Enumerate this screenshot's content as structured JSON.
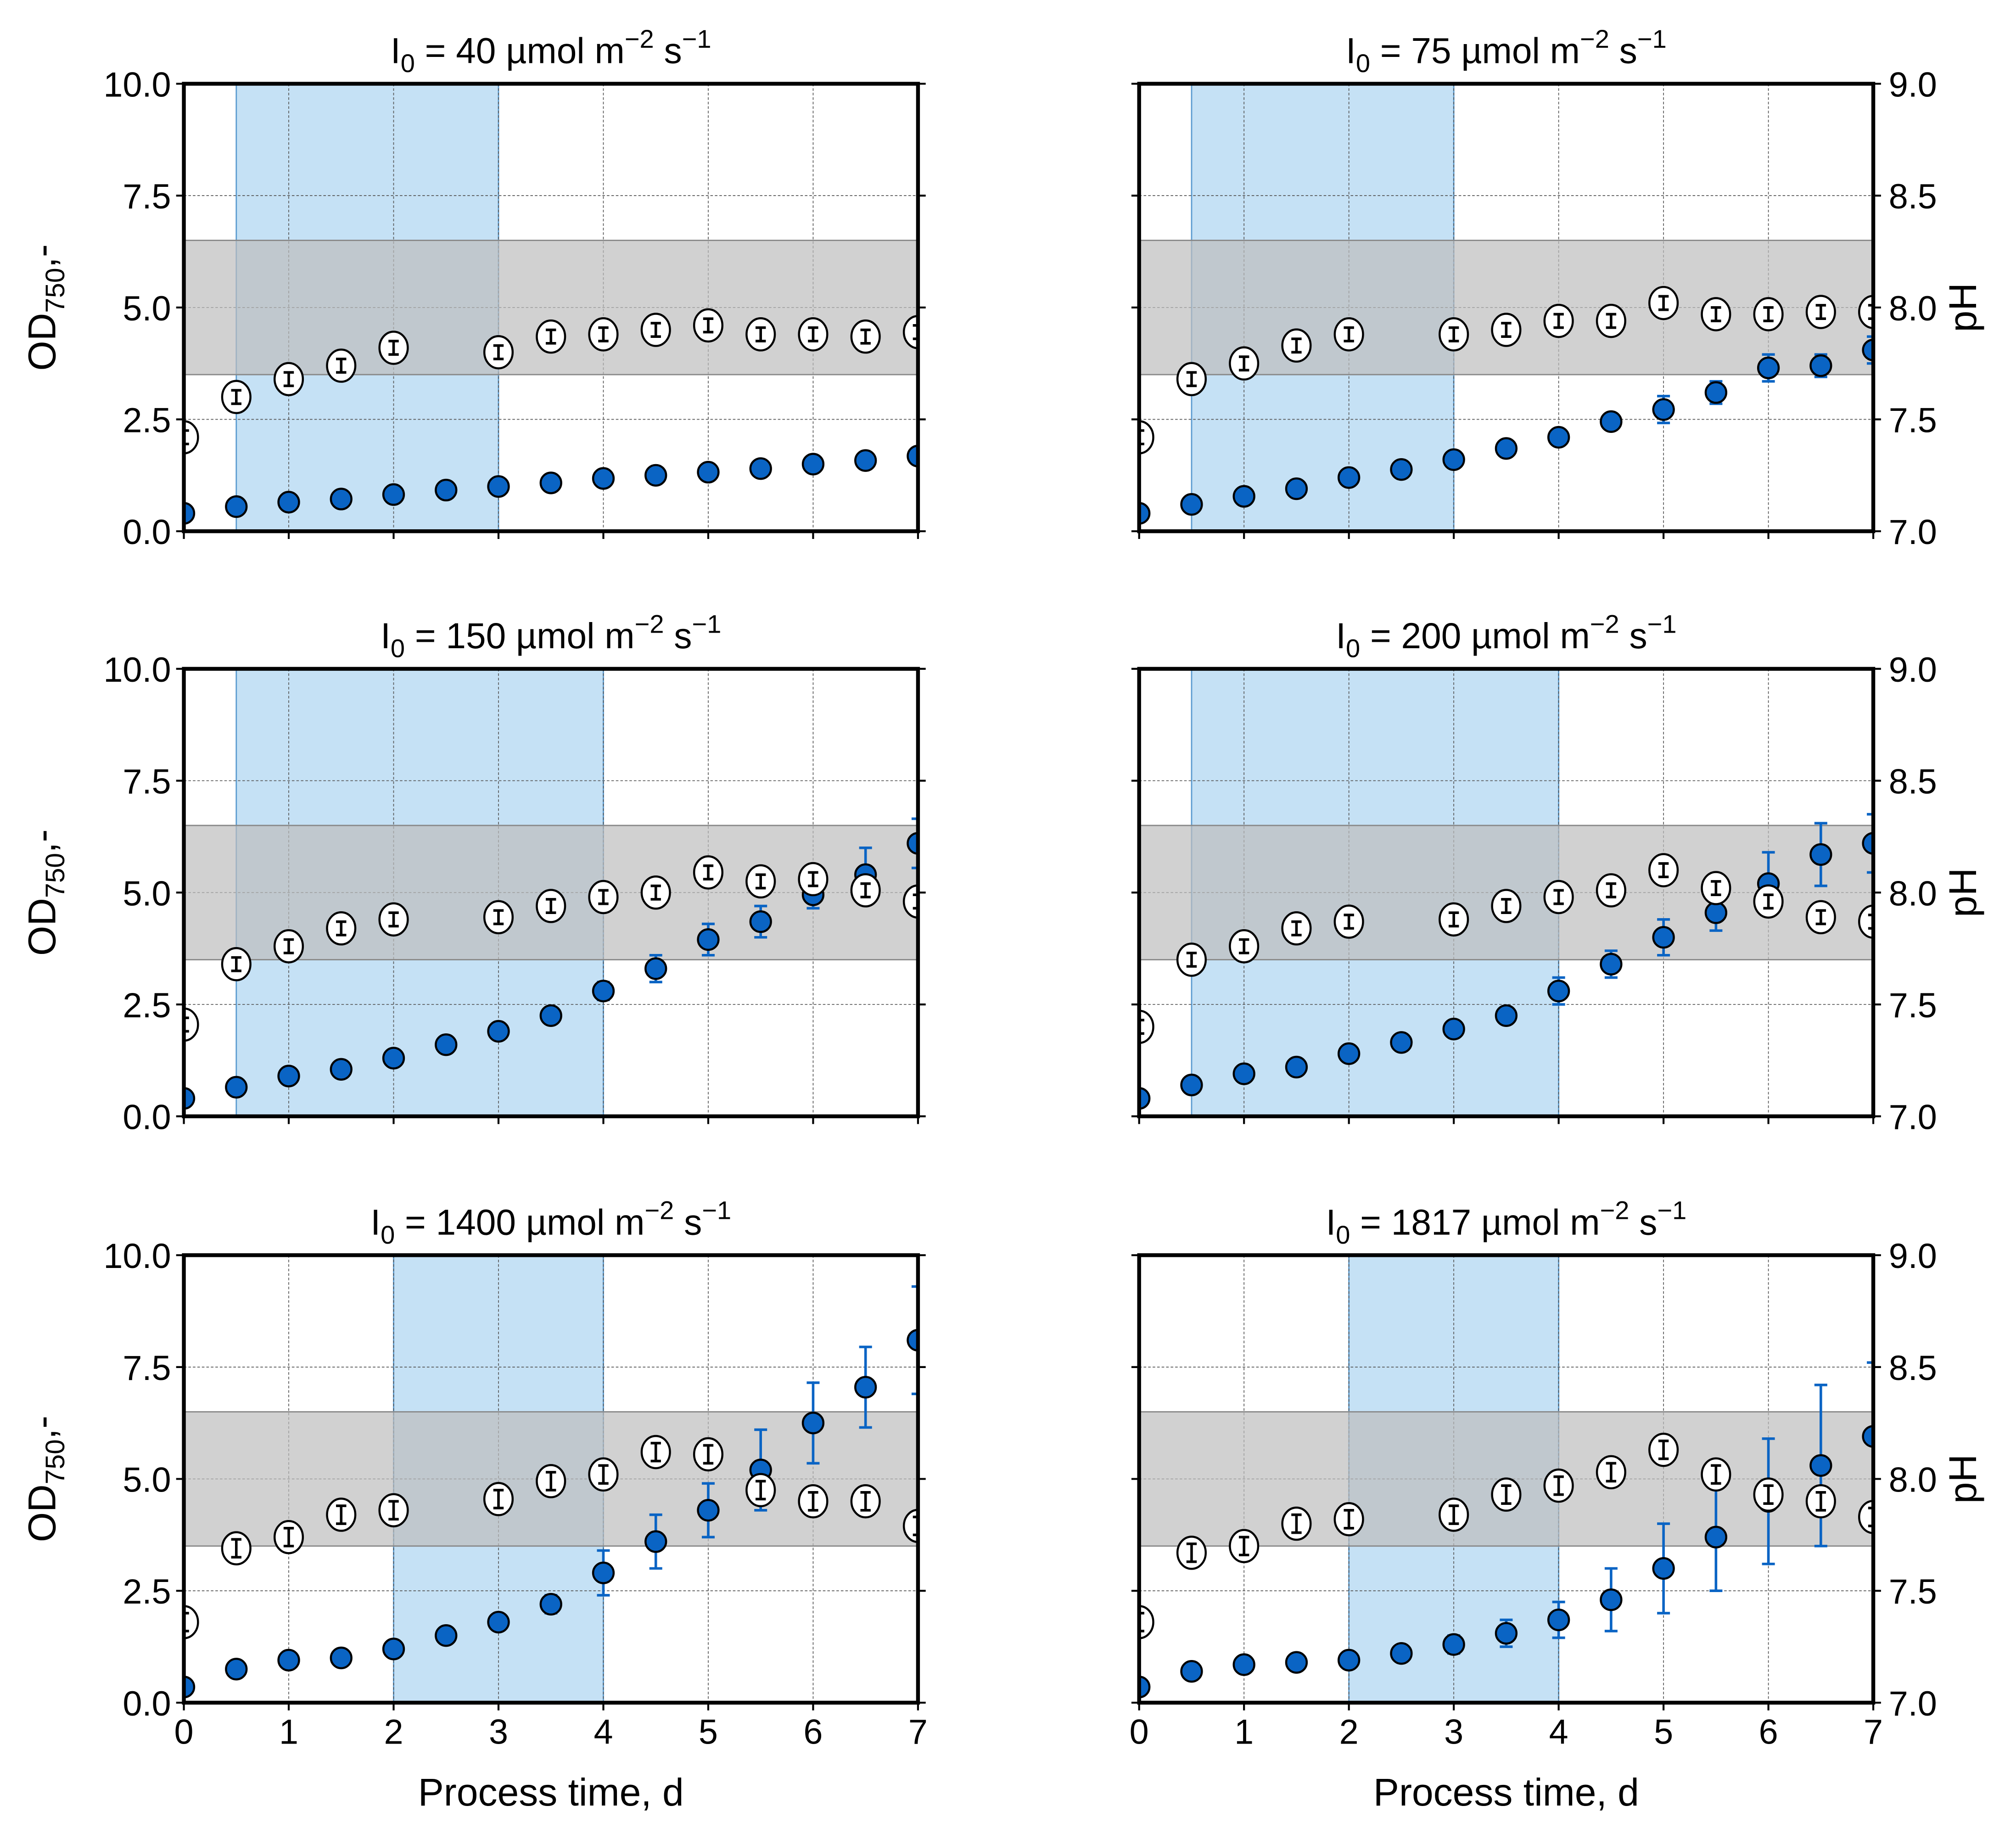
{
  "chart_data": {
    "type": "scatter",
    "layout": "3x2 grid of panels",
    "xlabel": "Process time, d",
    "ylabel_left": "OD750,-",
    "ylabel_left_main": "OD",
    "ylabel_left_sub": "750",
    "ylabel_left_suffix": ",-",
    "ylabel_right": "pH",
    "xlim": [
      0,
      7
    ],
    "xticks": [
      "0",
      "1",
      "2",
      "3",
      "4",
      "5",
      "6",
      "7"
    ],
    "ylim_left": [
      0,
      10
    ],
    "yticks_left": [
      "0.0",
      "2.5",
      "5.0",
      "7.5",
      "10.0"
    ],
    "ylim_right": [
      7,
      9
    ],
    "yticks_right": [
      "7.0",
      "7.5",
      "8.0",
      "8.5",
      "9.0"
    ],
    "grid": true,
    "title_parts": {
      "symbol": "I",
      "sub": "0",
      "eq": " = ",
      "unit_a": " µmol m",
      "exp_a": "−2",
      "unit_b": " s",
      "exp_b": "−1"
    },
    "ph_band": [
      7.7,
      8.3
    ],
    "colors": {
      "od": "#0a64c4",
      "od_err": "#0a64c4",
      "ph_face": "#ffffff",
      "band": "#bdbdbd",
      "shade": "#9fcdee"
    },
    "panels": [
      {
        "intensity": "40",
        "shade": [
          0.5,
          3
        ],
        "od_t": [
          0,
          0.5,
          1,
          1.5,
          2,
          2.5,
          3,
          3.5,
          4,
          4.5,
          5,
          5.5,
          6,
          6.5,
          7
        ],
        "od": [
          0.4,
          0.55,
          0.65,
          0.72,
          0.82,
          0.92,
          1.0,
          1.08,
          1.18,
          1.25,
          1.32,
          1.4,
          1.5,
          1.58,
          1.68
        ],
        "od_err": [
          0.02,
          0.02,
          0.02,
          0.02,
          0.03,
          0.03,
          0.03,
          0.03,
          0.04,
          0.04,
          0.04,
          0.05,
          0.05,
          0.05,
          0.06
        ],
        "ph_t": [
          0,
          0.5,
          1,
          1.5,
          2,
          3,
          3.5,
          4,
          4.5,
          5,
          5.5,
          6,
          6.5,
          7
        ],
        "ph": [
          7.42,
          7.6,
          7.68,
          7.74,
          7.82,
          7.8,
          7.87,
          7.88,
          7.9,
          7.92,
          7.88,
          7.88,
          7.87,
          7.89
        ],
        "ph_err": 0.03
      },
      {
        "intensity": "75",
        "shade": [
          0.5,
          3
        ],
        "od_t": [
          0,
          0.5,
          1,
          1.5,
          2,
          2.5,
          3,
          3.5,
          4,
          4.5,
          5,
          5.5,
          6,
          6.5,
          7
        ],
        "od": [
          0.4,
          0.6,
          0.78,
          0.95,
          1.2,
          1.38,
          1.6,
          1.85,
          2.1,
          2.45,
          2.72,
          3.1,
          3.65,
          3.7,
          4.05
        ],
        "od_err": [
          0.02,
          0.03,
          0.03,
          0.04,
          0.05,
          0.05,
          0.06,
          0.07,
          0.08,
          0.15,
          0.3,
          0.25,
          0.3,
          0.25,
          0.3
        ],
        "ph_t": [
          0,
          0.5,
          1,
          1.5,
          2,
          3,
          3.5,
          4,
          4.5,
          5,
          5.5,
          6,
          6.5,
          7
        ],
        "ph": [
          7.42,
          7.68,
          7.75,
          7.83,
          7.88,
          7.88,
          7.9,
          7.94,
          7.94,
          8.02,
          7.97,
          7.97,
          7.98,
          7.98
        ],
        "ph_err": 0.03
      },
      {
        "intensity": "150",
        "shade": [
          0.5,
          4
        ],
        "od_t": [
          0,
          0.5,
          1,
          1.5,
          2,
          2.5,
          3,
          3.5,
          4,
          4.5,
          5,
          5.5,
          6,
          6.5,
          7
        ],
        "od": [
          0.4,
          0.65,
          0.9,
          1.05,
          1.3,
          1.6,
          1.9,
          2.25,
          2.8,
          3.3,
          3.95,
          4.35,
          4.95,
          5.4,
          6.1
        ],
        "od_err": [
          0.02,
          0.03,
          0.03,
          0.04,
          0.05,
          0.06,
          0.07,
          0.1,
          0.2,
          0.3,
          0.35,
          0.35,
          0.3,
          0.6,
          0.55
        ],
        "ph_t": [
          0,
          0.5,
          1,
          1.5,
          2,
          3,
          3.5,
          4,
          4.5,
          5,
          5.5,
          6,
          6.5,
          7
        ],
        "ph": [
          7.41,
          7.68,
          7.76,
          7.84,
          7.88,
          7.89,
          7.94,
          7.98,
          8.0,
          8.09,
          8.05,
          8.06,
          8.01,
          7.96
        ],
        "ph_err": 0.03
      },
      {
        "intensity": "200",
        "shade": [
          0.5,
          4
        ],
        "od_t": [
          0,
          0.5,
          1,
          1.5,
          2,
          2.5,
          3,
          3.5,
          4,
          4.5,
          5,
          5.5,
          6,
          6.5,
          7
        ],
        "od": [
          0.4,
          0.7,
          0.95,
          1.1,
          1.4,
          1.65,
          1.95,
          2.25,
          2.8,
          3.4,
          4.0,
          4.55,
          5.2,
          5.85,
          6.1
        ],
        "od_err": [
          0.02,
          0.03,
          0.03,
          0.04,
          0.05,
          0.06,
          0.07,
          0.1,
          0.3,
          0.3,
          0.4,
          0.4,
          0.7,
          0.7,
          0.65
        ],
        "ph_t": [
          0,
          0.5,
          1,
          1.5,
          2,
          3,
          3.5,
          4,
          4.5,
          5,
          5.5,
          6,
          6.5,
          7
        ],
        "ph": [
          7.4,
          7.7,
          7.76,
          7.84,
          7.87,
          7.88,
          7.94,
          7.98,
          8.01,
          8.1,
          8.02,
          7.96,
          7.89,
          7.87
        ],
        "ph_err": 0.03
      },
      {
        "intensity": "1400",
        "shade": [
          2,
          4
        ],
        "od_t": [
          0,
          0.5,
          1,
          1.5,
          2,
          2.5,
          3,
          3.5,
          4,
          4.5,
          5,
          5.5,
          6,
          6.5,
          7
        ],
        "od": [
          0.35,
          0.75,
          0.95,
          1.0,
          1.2,
          1.5,
          1.8,
          2.2,
          2.9,
          3.6,
          4.3,
          5.2,
          6.25,
          7.05,
          8.1
        ],
        "od_err": [
          0.02,
          0.03,
          0.03,
          0.04,
          0.05,
          0.06,
          0.1,
          0.2,
          0.5,
          0.6,
          0.6,
          0.9,
          0.9,
          0.9,
          1.2
        ],
        "ph_t": [
          0,
          0.5,
          1,
          1.5,
          2,
          3,
          3.5,
          4,
          4.5,
          5,
          5.5,
          6,
          6.5,
          7
        ],
        "ph": [
          7.36,
          7.69,
          7.74,
          7.84,
          7.86,
          7.91,
          7.99,
          8.02,
          8.12,
          8.11,
          7.95,
          7.9,
          7.9,
          7.79
        ],
        "ph_err": 0.04
      },
      {
        "intensity": "1817",
        "shade": [
          2,
          4
        ],
        "od_t": [
          0,
          0.5,
          1,
          1.5,
          2,
          2.5,
          3,
          3.5,
          4,
          4.5,
          5,
          5.5,
          6,
          6.5,
          7
        ],
        "od": [
          0.35,
          0.7,
          0.85,
          0.9,
          0.95,
          1.1,
          1.3,
          1.55,
          1.85,
          2.3,
          3.0,
          3.7,
          4.5,
          5.3,
          5.95
        ],
        "od_err": [
          0.02,
          0.03,
          0.04,
          0.05,
          0.08,
          0.1,
          0.2,
          0.3,
          0.4,
          0.7,
          1.0,
          1.2,
          1.4,
          1.8,
          1.65
        ],
        "ph_t": [
          0,
          0.5,
          1,
          1.5,
          2,
          3,
          3.5,
          4,
          4.5,
          5,
          5.5,
          6,
          6.5,
          7
        ],
        "ph": [
          7.36,
          7.67,
          7.7,
          7.8,
          7.82,
          7.84,
          7.93,
          7.97,
          8.03,
          8.13,
          8.02,
          7.93,
          7.9,
          7.83
        ],
        "ph_err": 0.04
      }
    ]
  }
}
